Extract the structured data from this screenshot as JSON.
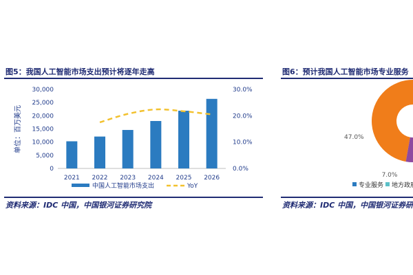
{
  "figures": [
    {
      "title": "图5：我国人工智能市场支出预计将逐年走高",
      "source": "资料来源：IDC 中国，中国银河证券研究院"
    },
    {
      "title": "图6：预计我国人工智能市场专业服务",
      "source": "资料来源：IDC 中国，中国银河证券研究"
    }
  ],
  "chart_data": [
    {
      "type": "bar",
      "title": "",
      "ylabel": "单位：百万美元",
      "categories": [
        "2021",
        "2022",
        "2023",
        "2024",
        "2025",
        "2026"
      ],
      "series": [
        {
          "name": "中国人工智能市场支出",
          "type": "bar",
          "axis": "left",
          "values": [
            10300,
            12100,
            14600,
            18000,
            21900,
            26400
          ],
          "color": "#2b7bc0"
        },
        {
          "name": "YoY",
          "type": "line",
          "axis": "right",
          "style": "dashed",
          "values": [
            null,
            17.5,
            20.7,
            22.4,
            21.7,
            20.5
          ],
          "color": "#f2c12e"
        }
      ],
      "y_ticks": [
        "0",
        "5,000",
        "10,000",
        "15,000",
        "20,000",
        "25,000",
        "30,000"
      ],
      "ylim": [
        0,
        30000
      ],
      "y2_ticks": [
        "0.0%",
        "10.0%",
        "20.0%",
        "30.0%"
      ],
      "y2lim": [
        0,
        30
      ],
      "legend": "bottom"
    },
    {
      "type": "pie",
      "legend": [
        "专业服务",
        "地方政府"
      ],
      "slice_labels": [
        "47.0%",
        "7.0%"
      ],
      "colors": [
        "#f07d1a",
        "#8e4aa0"
      ],
      "partial": true
    }
  ]
}
